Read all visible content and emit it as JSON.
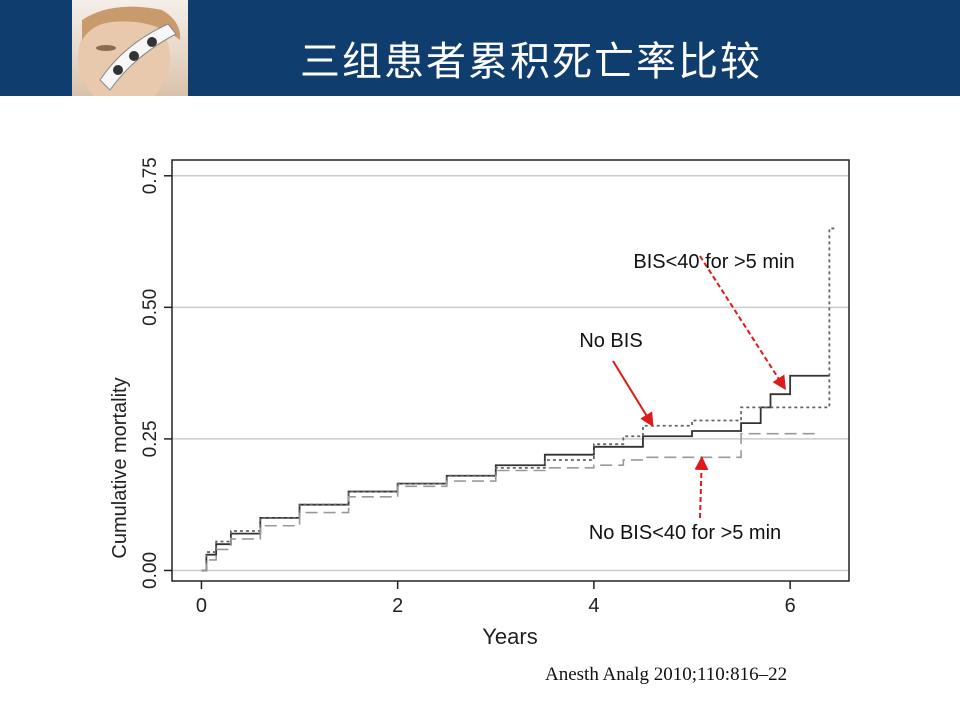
{
  "header": {
    "title": "三组患者累积死亡率比较",
    "photo_icon": "patient-with-bis-sensor"
  },
  "colors": {
    "header_bg": "#0f3e6e",
    "arrow": "#e01a1a",
    "series_solid": "#333333",
    "series_dotted": "#666666",
    "series_dashed": "#999999"
  },
  "chart_data": {
    "type": "line",
    "xlabel": "Years",
    "ylabel": "Cumulative mortality",
    "xlim": [
      -0.3,
      6.6
    ],
    "ylim": [
      -0.02,
      0.78
    ],
    "xticks": [
      0,
      2,
      4,
      6
    ],
    "xtick_labels": [
      "0",
      "2",
      "4",
      "6"
    ],
    "yticks": [
      0.0,
      0.25,
      0.5,
      0.75
    ],
    "ytick_labels": [
      "0.00",
      "0.25",
      "0.50",
      "0.75"
    ],
    "grid": "horizontal",
    "series": [
      {
        "style": "solid",
        "x": [
          0,
          0.05,
          0.15,
          0.3,
          0.6,
          1.0,
          1.5,
          2.0,
          2.5,
          3.0,
          3.5,
          4.0,
          4.5,
          5.0,
          5.5,
          5.7,
          5.8,
          6.0,
          6.4
        ],
        "y": [
          0.0,
          0.03,
          0.05,
          0.07,
          0.1,
          0.125,
          0.15,
          0.165,
          0.18,
          0.2,
          0.22,
          0.235,
          0.255,
          0.265,
          0.28,
          0.31,
          0.335,
          0.37,
          0.37
        ]
      },
      {
        "style": "dotted",
        "x": [
          0,
          0.05,
          0.15,
          0.3,
          0.6,
          1.0,
          1.5,
          2.0,
          2.5,
          3.0,
          3.5,
          4.0,
          4.3,
          4.5,
          5.0,
          5.5,
          5.7,
          6.0,
          6.4,
          6.4,
          6.45
        ],
        "y": [
          0.0,
          0.035,
          0.055,
          0.075,
          0.1,
          0.125,
          0.15,
          0.165,
          0.18,
          0.195,
          0.21,
          0.24,
          0.255,
          0.275,
          0.285,
          0.31,
          0.31,
          0.31,
          0.31,
          0.65,
          0.65
        ]
      },
      {
        "style": "dashed",
        "x": [
          0,
          0.05,
          0.15,
          0.3,
          0.6,
          1.0,
          1.5,
          2.0,
          2.5,
          3.0,
          3.5,
          4.0,
          4.3,
          4.5,
          5.0,
          5.5,
          5.5,
          6.0,
          6.25
        ],
        "y": [
          0.0,
          0.02,
          0.04,
          0.06,
          0.085,
          0.11,
          0.14,
          0.16,
          0.17,
          0.19,
          0.195,
          0.2,
          0.21,
          0.215,
          0.215,
          0.215,
          0.26,
          0.26,
          0.26
        ]
      }
    ],
    "annotations": [
      {
        "text": "BIS<40 for >5 min",
        "points_to": [
          5.95,
          0.345
        ],
        "style": "dashed-arrow"
      },
      {
        "text": "No BIS",
        "points_to": [
          4.6,
          0.275
        ],
        "style": "solid-arrow"
      },
      {
        "text": "No BIS<40 for >5 min",
        "points_to": [
          5.1,
          0.215
        ],
        "style": "dashed-arrow"
      }
    ]
  },
  "citation": "Anesth Analg 2010;110:816–22"
}
